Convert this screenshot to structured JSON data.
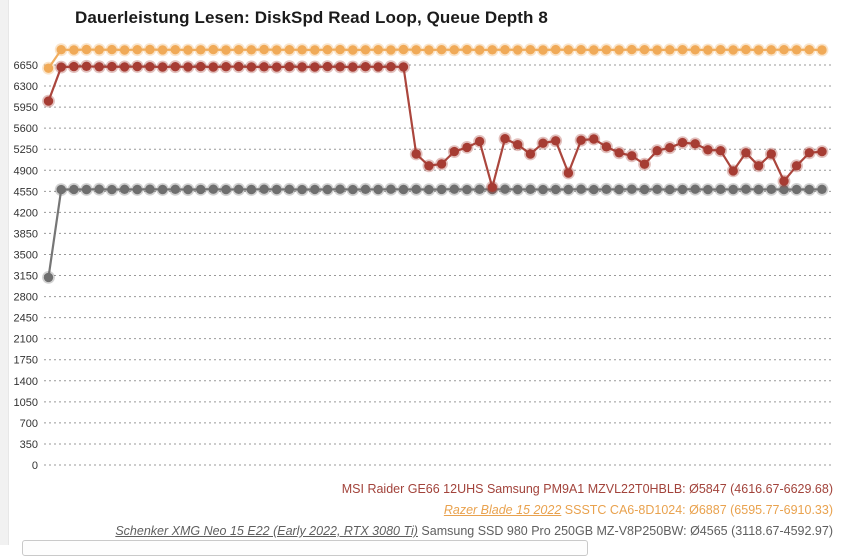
{
  "page": {
    "background": "#ffffff",
    "left_gutter_color": "#f1f1f1"
  },
  "chart_data": {
    "type": "line",
    "title": "Dauerleistung Lesen: DiskSpd Read Loop, Queue Depth 8",
    "xlabel": "",
    "ylabel": "",
    "ylim": [
      0,
      6650
    ],
    "y_ticks": [
      0,
      350,
      700,
      1050,
      1400,
      1750,
      2100,
      2450,
      2800,
      3150,
      3500,
      3850,
      4200,
      4550,
      4900,
      5250,
      5600,
      5950,
      6300,
      6650
    ],
    "grid": "horizontal-dashed",
    "x_axis_labels": "none",
    "legend_position": "bottom-right",
    "series": [
      {
        "id": "schenker",
        "link_label": "Schenker XMG Neo 15 E22 (Early 2022, RTX 3080 Ti)",
        "plain_label": " Samsung SSD 980 Pro 250GB MZ-V8P250BW:",
        "stats": " Ø4565 (3118.67-4592.97)",
        "color": "#6f6f6f",
        "legend_color": "#5f5f5f",
        "values": [
          3119,
          4578,
          4582,
          4580,
          4585,
          4579,
          4583,
          4581,
          4586,
          4580,
          4584,
          4578,
          4582,
          4585,
          4579,
          4583,
          4580,
          4586,
          4581,
          4584,
          4578,
          4582,
          4580,
          4585,
          4579,
          4583,
          4581,
          4586,
          4580,
          4584,
          4578,
          4582,
          4585,
          4579,
          4583,
          4580,
          4586,
          4581,
          4584,
          4578,
          4582,
          4580,
          4585,
          4579,
          4583,
          4581,
          4586,
          4580,
          4584,
          4578,
          4582,
          4585,
          4579,
          4583,
          4580,
          4586,
          4581,
          4584,
          4578,
          4582,
          4580,
          4583
        ]
      },
      {
        "id": "razer",
        "link_label": "Razer Blade 15 2022",
        "plain_label": " SSSTC CA6-8D1024:",
        "stats": " Ø6887 (6595.77-6910.33)",
        "color": "#f0aa58",
        "legend_color": "#e9a24e",
        "values": [
          6596,
          6905,
          6900,
          6908,
          6902,
          6906,
          6900,
          6904,
          6907,
          6901,
          6905,
          6899,
          6903,
          6906,
          6900,
          6904,
          6902,
          6907,
          6901,
          6905,
          6903,
          6899,
          6904,
          6906,
          6900,
          6902,
          6905,
          6901,
          6907,
          6903,
          6900,
          6904,
          6902,
          6906,
          6899,
          6903,
          6905,
          6901,
          6904,
          6900,
          6906,
          6902,
          6905,
          6899,
          6903,
          6901,
          6906,
          6904,
          6900,
          6902,
          6905,
          6903,
          6899,
          6904,
          6901,
          6906,
          6900,
          6903,
          6905,
          6902,
          6904,
          6900
        ]
      },
      {
        "id": "msi",
        "link_label": "",
        "plain_label": "MSI Raider GE66 12UHS Samsung PM9A1 MZVL22T0HBLB:",
        "stats": " Ø5847 (4616.67-6629.68)",
        "color": "#a63c33",
        "legend_color": "#a2433b",
        "values": [
          6050,
          6615,
          6624,
          6628,
          6620,
          6623,
          6618,
          6625,
          6621,
          6616,
          6622,
          6619,
          6624,
          6617,
          6621,
          6623,
          6618,
          6620,
          6615,
          6622,
          6619,
          6616,
          6623,
          6620,
          6617,
          6621,
          6618,
          6622,
          6619,
          5170,
          4975,
          5005,
          5210,
          5280,
          5380,
          4617,
          5425,
          5325,
          5170,
          5350,
          5390,
          4855,
          5400,
          5420,
          5290,
          5190,
          5140,
          5000,
          5225,
          5275,
          5360,
          5340,
          5240,
          5225,
          4890,
          5190,
          4975,
          5170,
          4720,
          4975,
          5190,
          5210
        ]
      }
    ],
    "legend_order": [
      "msi",
      "razer",
      "schenker"
    ]
  }
}
